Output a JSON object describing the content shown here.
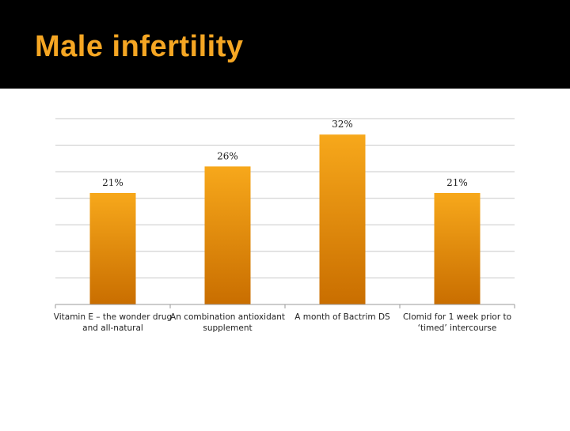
{
  "slide": {
    "title": "Male infertility"
  },
  "colors": {
    "title": "#f5a623",
    "bar_top": "#f7a81b",
    "bar_bottom": "#c96e00",
    "grid": "#c8c8c8"
  },
  "chart_data": {
    "type": "bar",
    "title": "",
    "xlabel": "",
    "ylabel": "",
    "ylim": [
      0,
      35
    ],
    "gridline_step": 5,
    "categories": [
      "Vitamin E – the wonder drug and all-natural",
      "An combination antioxidant supplement",
      "A month of Bactrim DS",
      "Clomid for 1 week prior to ‘timed’ intercourse"
    ],
    "values": [
      21,
      26,
      32,
      21
    ],
    "data_labels": [
      "21%",
      "26%",
      "32%",
      "21%"
    ],
    "legend": "none"
  }
}
